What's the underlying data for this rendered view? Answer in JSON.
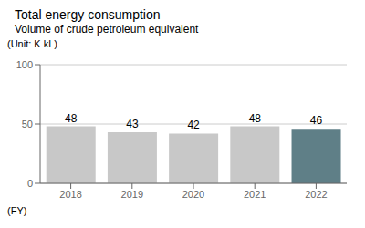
{
  "chart_data": {
    "type": "bar",
    "title": "Total energy consumption",
    "subtitle": "Volume of crude petroleum equivalent",
    "ylabel": "(Unit: K kL)",
    "xlabel": "(FY)",
    "categories": [
      "2018",
      "2019",
      "2020",
      "2021",
      "2022"
    ],
    "values": [
      48,
      43,
      42,
      48,
      46
    ],
    "colors": [
      "#c8c8c8",
      "#c8c8c8",
      "#c8c8c8",
      "#c8c8c8",
      "#5f7f87"
    ],
    "ylim": [
      0,
      100
    ],
    "yticks": [
      0,
      50,
      100
    ],
    "grid": true,
    "data_labels": true
  }
}
